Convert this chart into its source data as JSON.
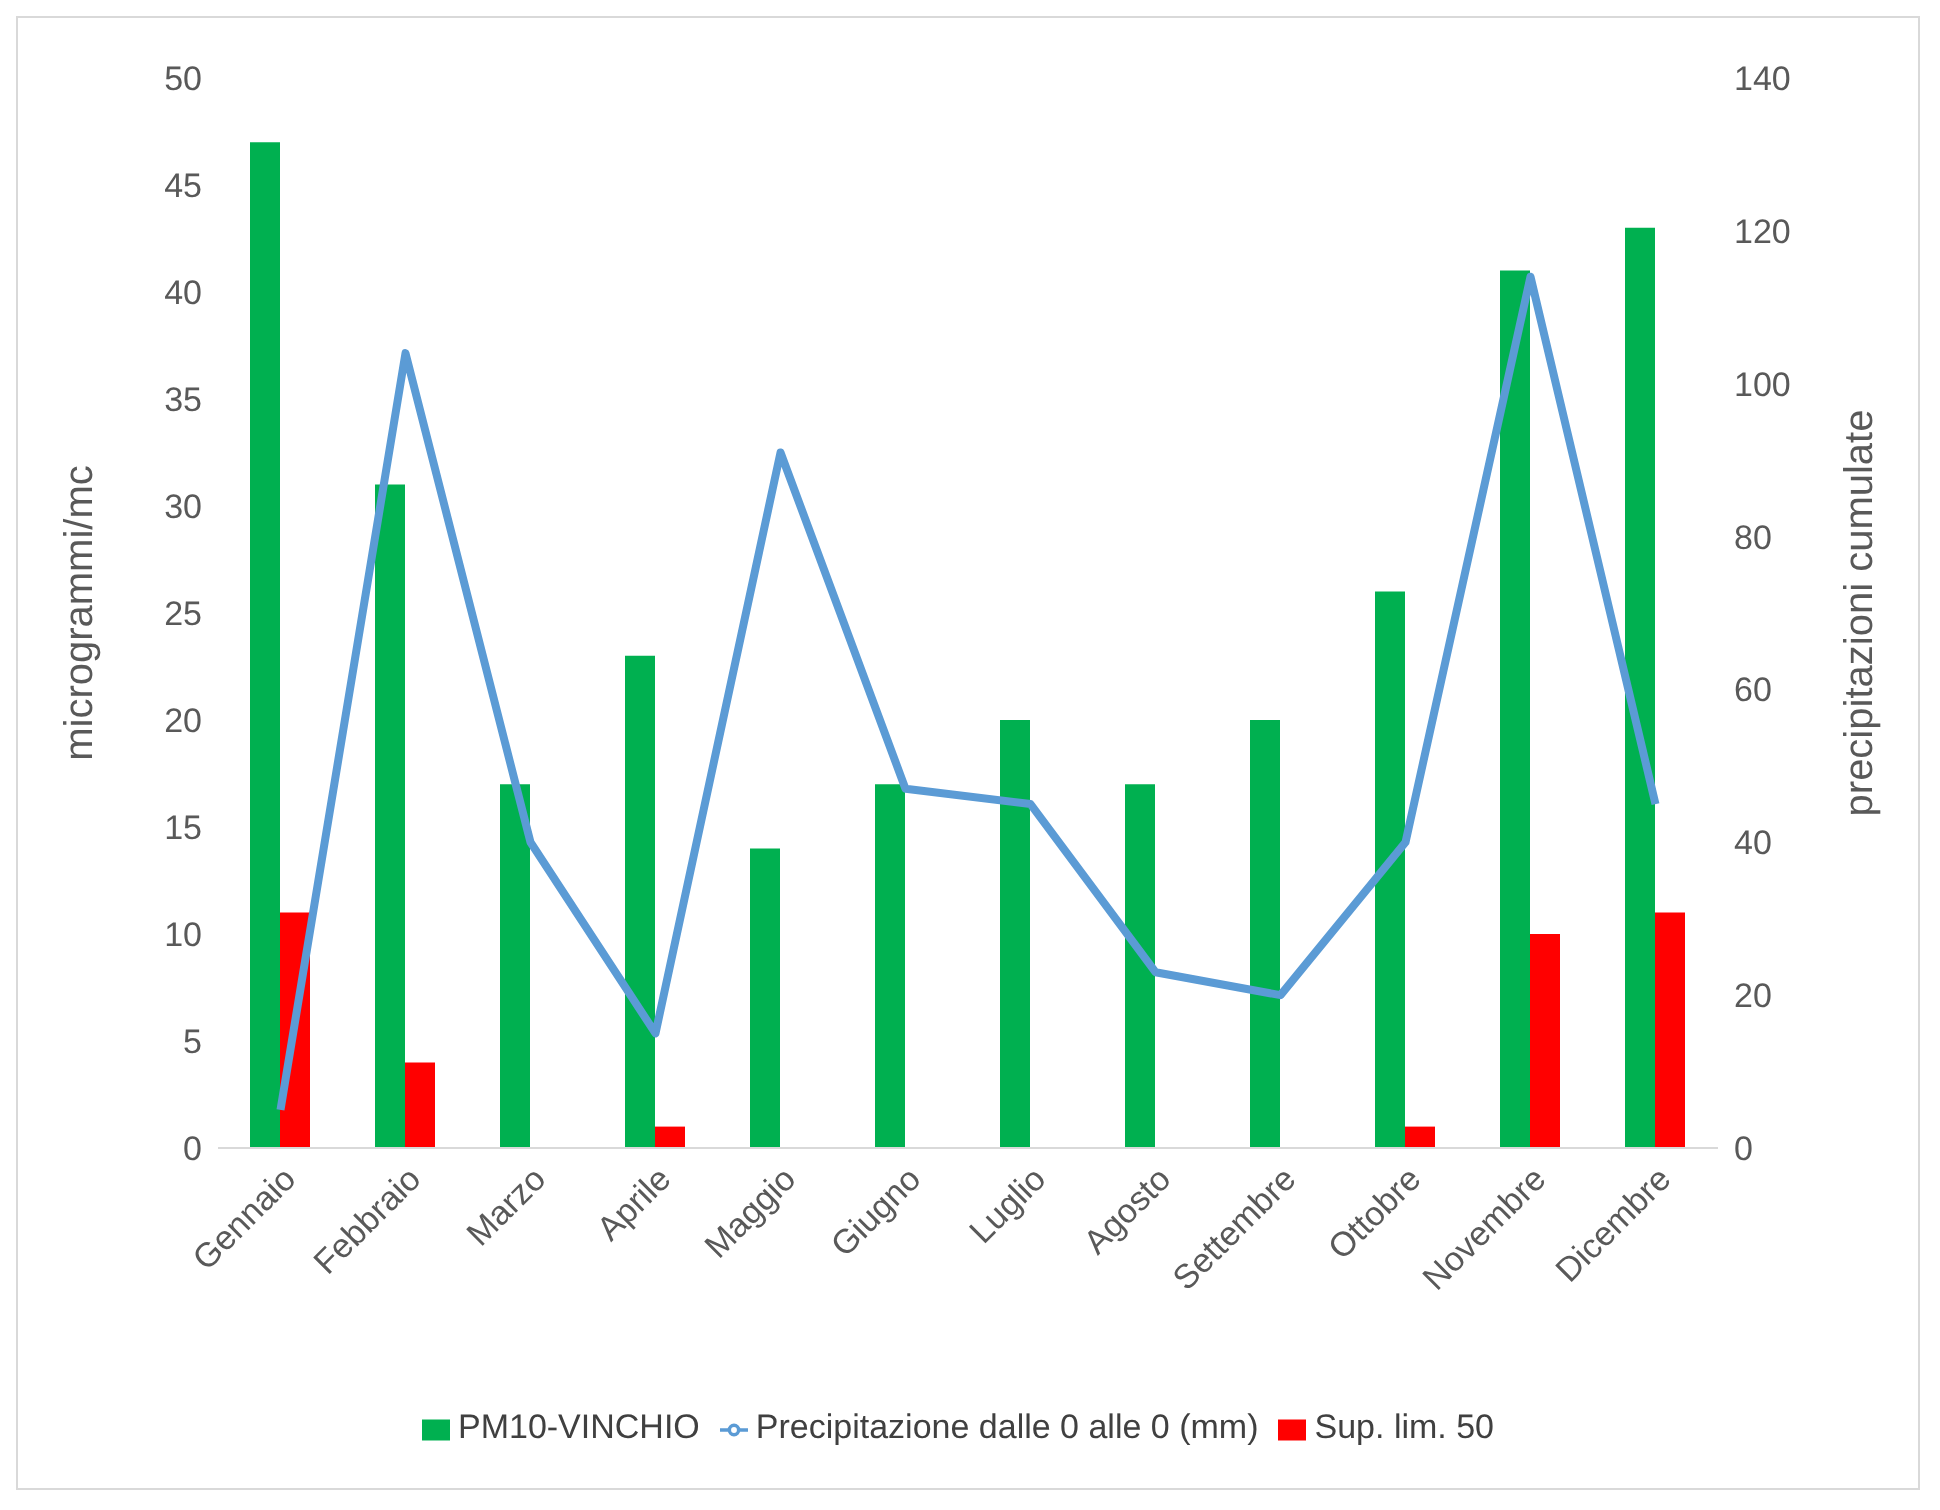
{
  "chart_data": {
    "type": "bar",
    "categories": [
      "Gennaio",
      "Febbraio",
      "Marzo",
      "Aprile",
      "Maggio",
      "Giugno",
      "Luglio",
      "Agosto",
      "Settembre",
      "Ottobre",
      "Novembre",
      "Dicembre"
    ],
    "series": [
      {
        "name": "PM10-VINCHIO",
        "color": "#00b050",
        "values": [
          47,
          31,
          17,
          23,
          14,
          17,
          20,
          17,
          20,
          26,
          41,
          43
        ]
      },
      {
        "name": "Sup. lim. 50",
        "color": "#ff0000",
        "values": [
          11,
          4,
          0,
          1,
          0,
          0,
          0,
          0,
          0,
          1,
          10,
          11
        ]
      },
      {
        "name": "Precipitazione dalle 0 alle 0 (mm)",
        "type": "line",
        "axis": "y2",
        "color": "#5b9bd5",
        "values": [
          5,
          104,
          40,
          15,
          91,
          47,
          45,
          23,
          20,
          40,
          114,
          45
        ]
      }
    ],
    "ylabel": "microgrammi/mc",
    "y2label": "precipitazioni cumulate",
    "ylim": [
      0,
      50
    ],
    "yticks": [
      0,
      5,
      10,
      15,
      20,
      25,
      30,
      35,
      40,
      45,
      50
    ],
    "y2lim": [
      0,
      140
    ],
    "y2ticks": [
      0,
      20,
      40,
      60,
      80,
      100,
      120,
      140
    ],
    "grid": false,
    "legend": "bottom",
    "marker": "none"
  }
}
